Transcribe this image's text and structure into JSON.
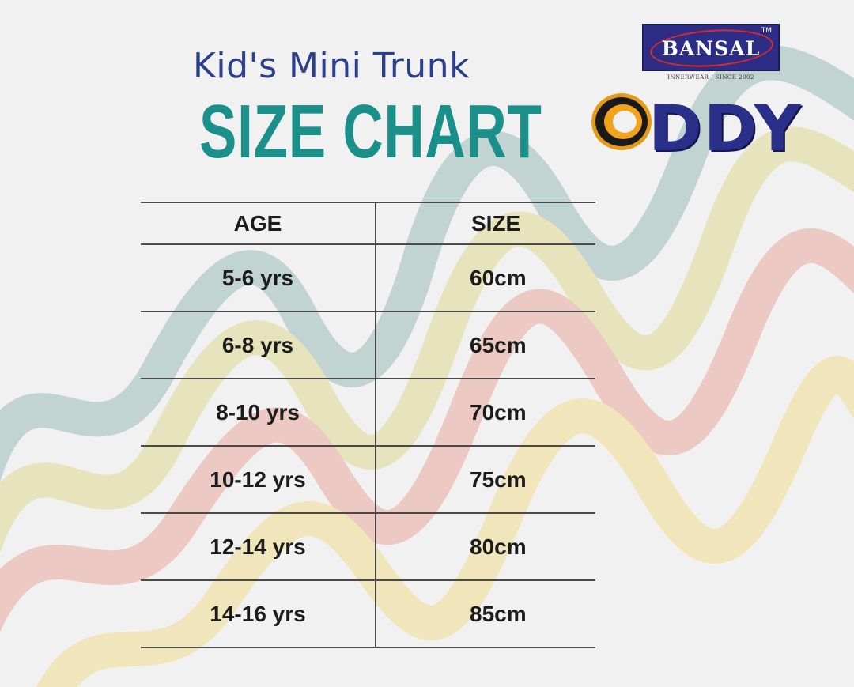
{
  "header": {
    "subtitle": "Kid's Mini Trunk",
    "title": "SIZE CHART"
  },
  "brands": {
    "bansal": {
      "name": "BANSAL",
      "trademark": "TM",
      "tagline": "INNERWEAR | SINCE 2002"
    },
    "oddy": {
      "name": "DDY",
      "logo_icon": "oddy-o-ring-icon"
    }
  },
  "table": {
    "headers": [
      "AGE",
      "SIZE"
    ],
    "rows": [
      [
        "5-6 yrs",
        "60cm"
      ],
      [
        "6-8 yrs",
        "65cm"
      ],
      [
        "8-10 yrs",
        "70cm"
      ],
      [
        "10-12 yrs",
        "75cm"
      ],
      [
        "12-14 yrs",
        "80cm"
      ],
      [
        "14-16 yrs",
        "85cm"
      ]
    ]
  },
  "colors": {
    "title": "#1b8f8a",
    "subtitle": "#2b3f8c",
    "wave_teal": "#b9cfcc",
    "wave_yellow": "#e6e2b4",
    "wave_pink": "#ecc3ba",
    "wave_cream": "#f2e3b2"
  }
}
